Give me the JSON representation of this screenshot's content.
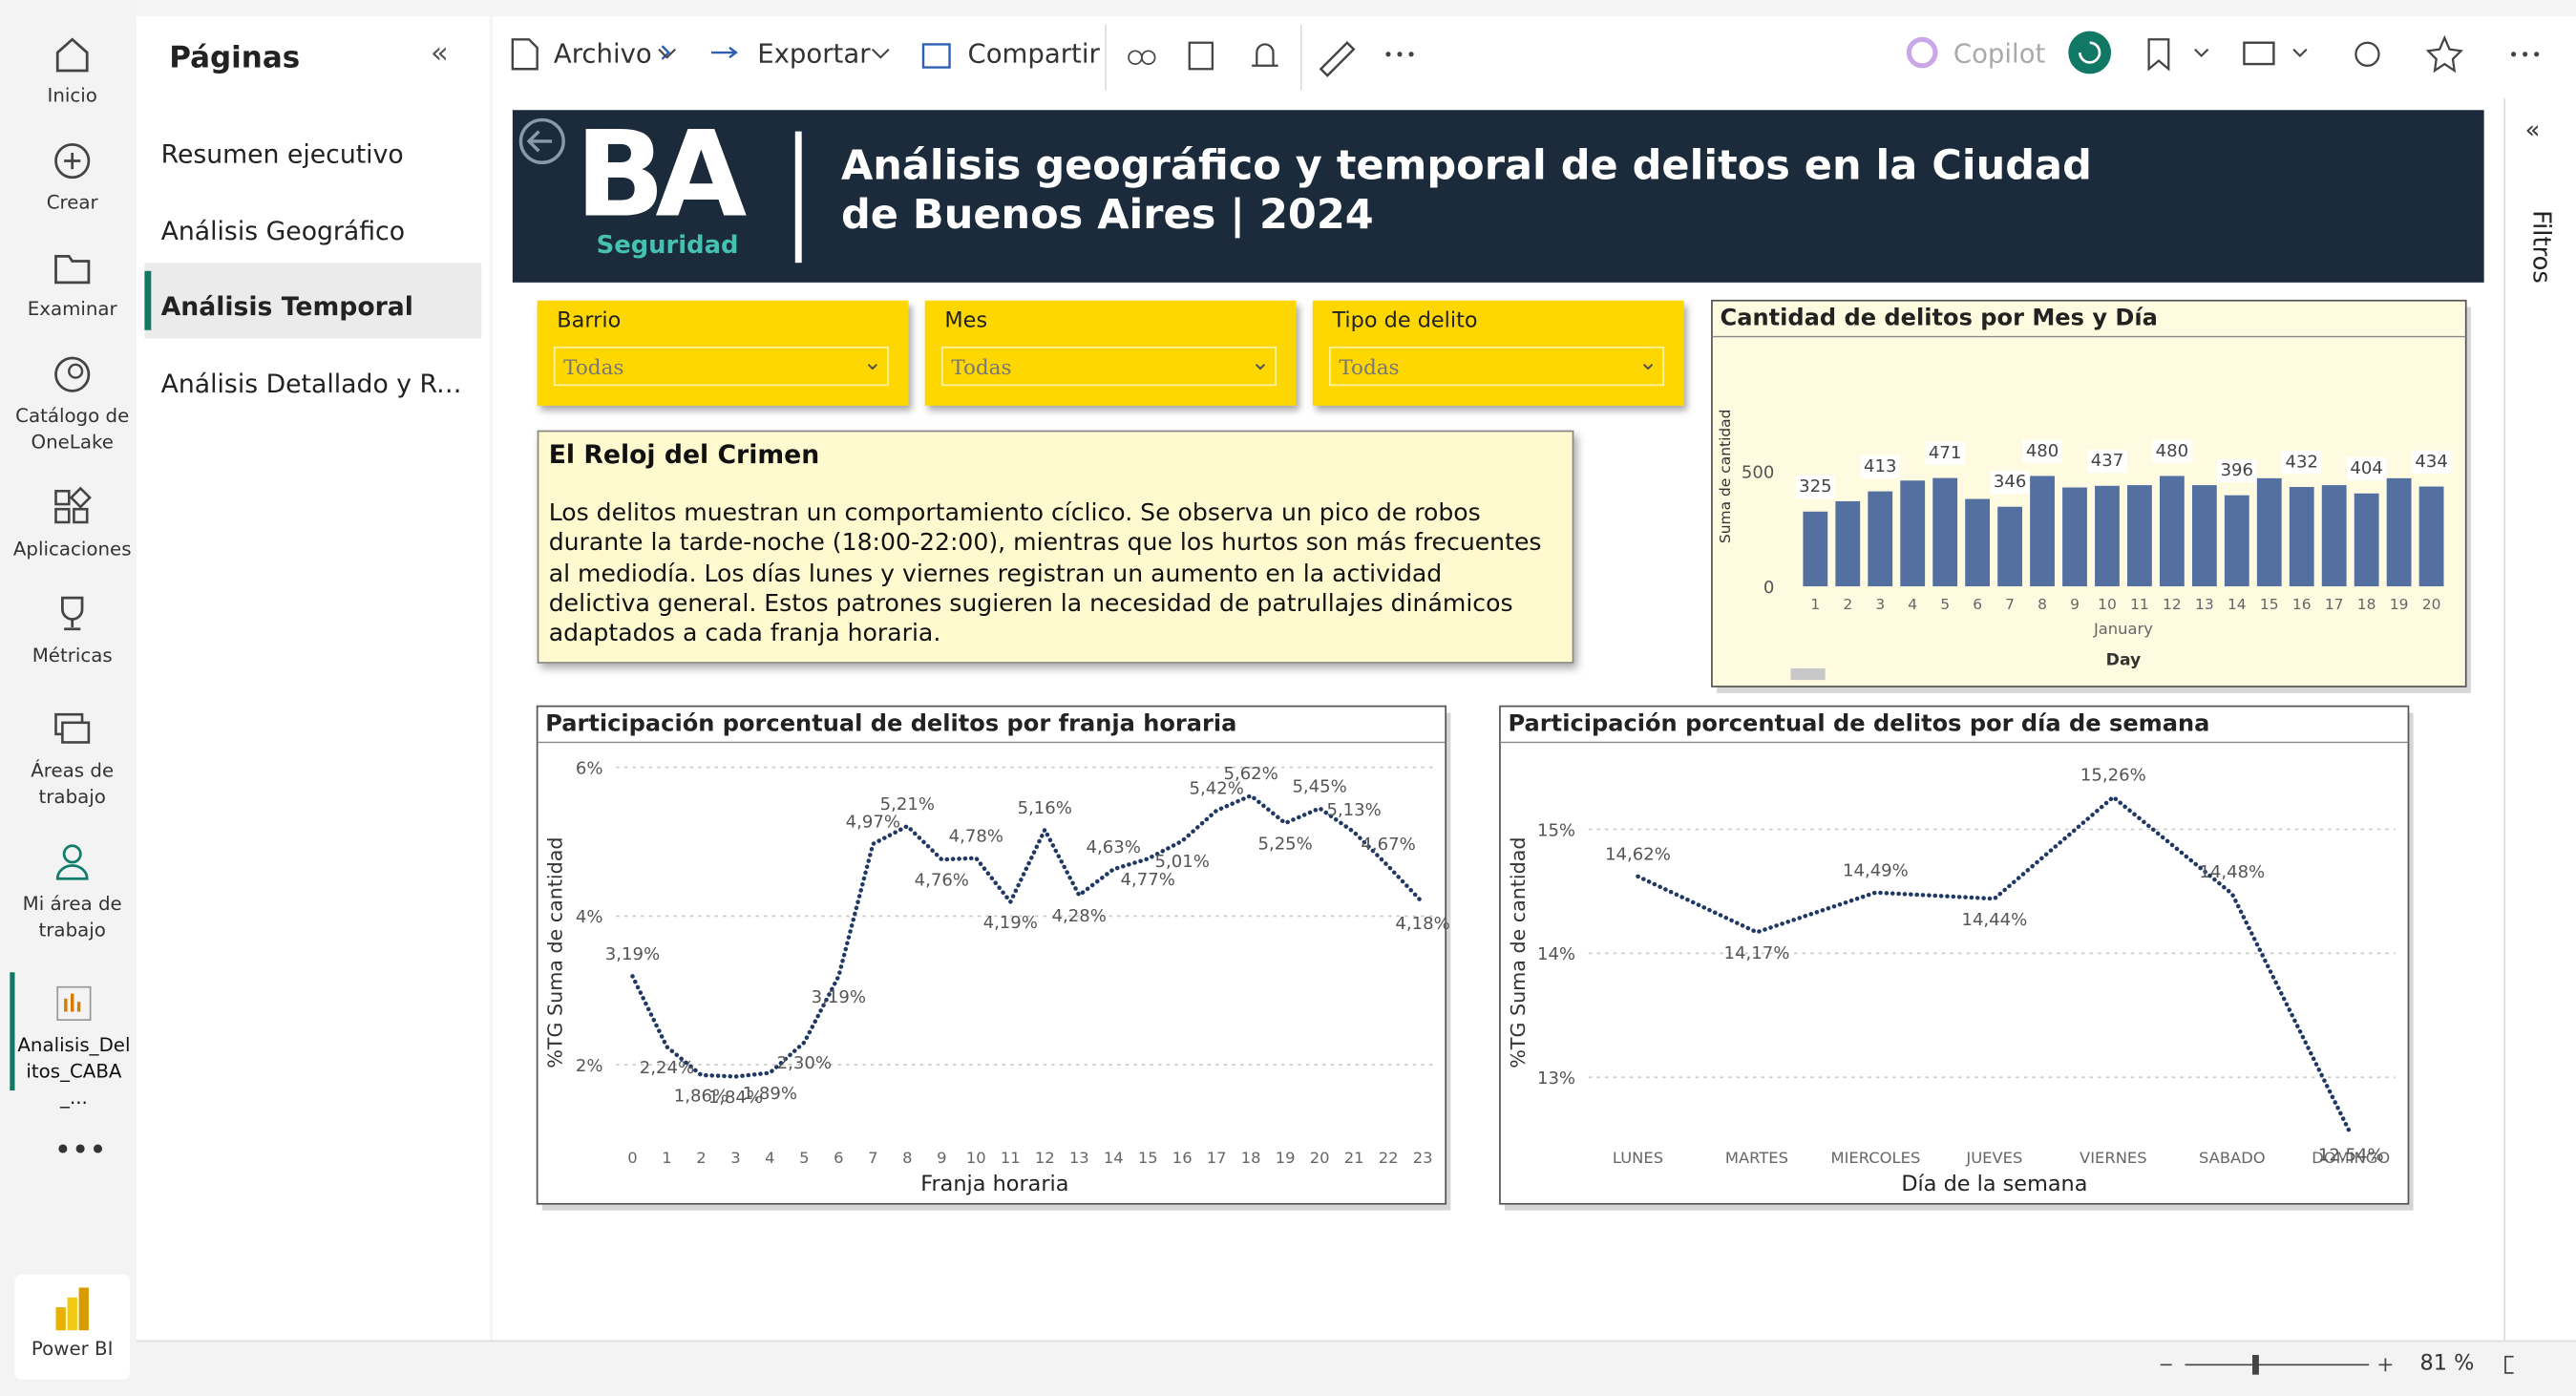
{
  "nav": [
    "Inicio",
    "Crear",
    "Examinar",
    "Catálogo de OneLake",
    "Aplicaciones",
    "Métricas",
    "Áreas de trabajo",
    "Mi área de trabajo",
    "Analisis_Delitos_CABA_..."
  ],
  "app_name": "Power BI",
  "pages_panel": {
    "title": "Páginas",
    "pages": [
      "Resumen ejecutivo",
      "Análisis Geográfico",
      "Análisis Temporal",
      "Análisis Detallado y Rec..."
    ],
    "selected": 2
  },
  "toolbar": {
    "items": [
      "Archivo",
      "Exportar",
      "Compartir"
    ],
    "copilot": "Copilot"
  },
  "report": {
    "logo": "BA",
    "logo_sub": "Seguridad",
    "title": "Análisis geográfico y temporal de delitos en la Ciudad de Buenos Aires | 2024",
    "filters": [
      {
        "label": "Barrio",
        "value": "Todas"
      },
      {
        "label": "Mes",
        "value": "Todas"
      },
      {
        "label": "Tipo de delito",
        "value": "Todas"
      }
    ],
    "textbox": {
      "title": "El Reloj del Crimen",
      "body": "Los delitos muestran un comportamiento cíclico. Se observa un pico de robos durante la tarde-noche (18:00-22:00), mientras que los hurtos son más frecuentes al mediodía. Los días lunes y viernes registran un aumento en la actividad delictiva general. Estos patrones sugieren la necesidad de patrullajes dinámicos adaptados a cada franja horaria."
    }
  },
  "filters_pane": "Filtros",
  "zoom": "81 %",
  "chart_data": [
    {
      "type": "bar",
      "title": "Cantidad de delitos por Mes y Día",
      "categories": [
        "1",
        "2",
        "3",
        "4",
        "5",
        "6",
        "7",
        "8",
        "9",
        "10",
        "11",
        "12",
        "13",
        "14",
        "15",
        "16",
        "17",
        "18",
        "19",
        "20"
      ],
      "values": [
        325,
        370,
        413,
        460,
        471,
        380,
        346,
        480,
        430,
        437,
        440,
        480,
        440,
        396,
        470,
        432,
        440,
        404,
        470,
        434
      ],
      "value_labels": [
        "325",
        null,
        "413",
        null,
        "471",
        null,
        "346",
        "480",
        null,
        "437",
        null,
        "480",
        null,
        "396",
        null,
        "432",
        null,
        "404",
        null,
        "434"
      ],
      "x_sublabel": "January",
      "xlabel": "Day",
      "ylabel": "Suma de cantidad",
      "ylim": [
        0,
        600
      ],
      "yticks": [
        0,
        500
      ],
      "color": "#5470a0"
    },
    {
      "type": "line",
      "title": "Participación porcentual de delitos por franja horaria",
      "categories": [
        "0",
        "1",
        "2",
        "3",
        "4",
        "5",
        "6",
        "7",
        "8",
        "9",
        "10",
        "11",
        "12",
        "13",
        "14",
        "15",
        "16",
        "17",
        "18",
        "19",
        "20",
        "21",
        "22",
        "23"
      ],
      "values": [
        3.19,
        2.24,
        1.86,
        1.84,
        1.89,
        2.3,
        3.19,
        4.97,
        5.21,
        4.76,
        4.78,
        4.19,
        5.16,
        4.28,
        4.63,
        4.77,
        5.01,
        5.42,
        5.62,
        5.25,
        5.45,
        5.13,
        4.67,
        4.18
      ],
      "value_labels": [
        "3,19%",
        "2,24%",
        "1,86%",
        "1,84%",
        "1,89%",
        "2,30%",
        "3,19%",
        "4,97%",
        "5,21%",
        "4,76%",
        "4,78%",
        "4,19%",
        "5,16%",
        "4,28%",
        "4,63%",
        "4,77%",
        "5,01%",
        "5,42%",
        "5,62%",
        "5,25%",
        "5,45%",
        "5,13%",
        "4,67%",
        "4,18%"
      ],
      "xlabel": "Franja horaria",
      "ylabel": "%TG Suma de cantidad",
      "ylim": [
        1,
        6.2
      ],
      "yticks": [
        {
          "value": 2,
          "label": "2%"
        },
        {
          "value": 4,
          "label": "4%"
        },
        {
          "value": 6,
          "label": "6%"
        }
      ],
      "color": "#1f3864",
      "grid": true
    },
    {
      "type": "line",
      "title": "Participación porcentual de delitos por día de semana",
      "categories": [
        "LUNES",
        "MARTES",
        "MIERCOLES",
        "JUEVES",
        "VIERNES",
        "SABADO",
        "DOMINGO"
      ],
      "values": [
        14.62,
        14.17,
        14.49,
        14.44,
        15.26,
        14.48,
        12.54
      ],
      "value_labels": [
        "14,62%",
        "14,17%",
        "14,49%",
        "14,44%",
        "15,26%",
        "14,48%",
        "12,54%"
      ],
      "xlabel": "Día de la semana",
      "ylabel": "%TG Suma de cantidad",
      "ylim": [
        12.5,
        15.5
      ],
      "yticks": [
        {
          "value": 13,
          "label": "13%"
        },
        {
          "value": 14,
          "label": "14%"
        },
        {
          "value": 15,
          "label": "15%"
        }
      ],
      "color": "#1f3864",
      "grid": true
    }
  ]
}
